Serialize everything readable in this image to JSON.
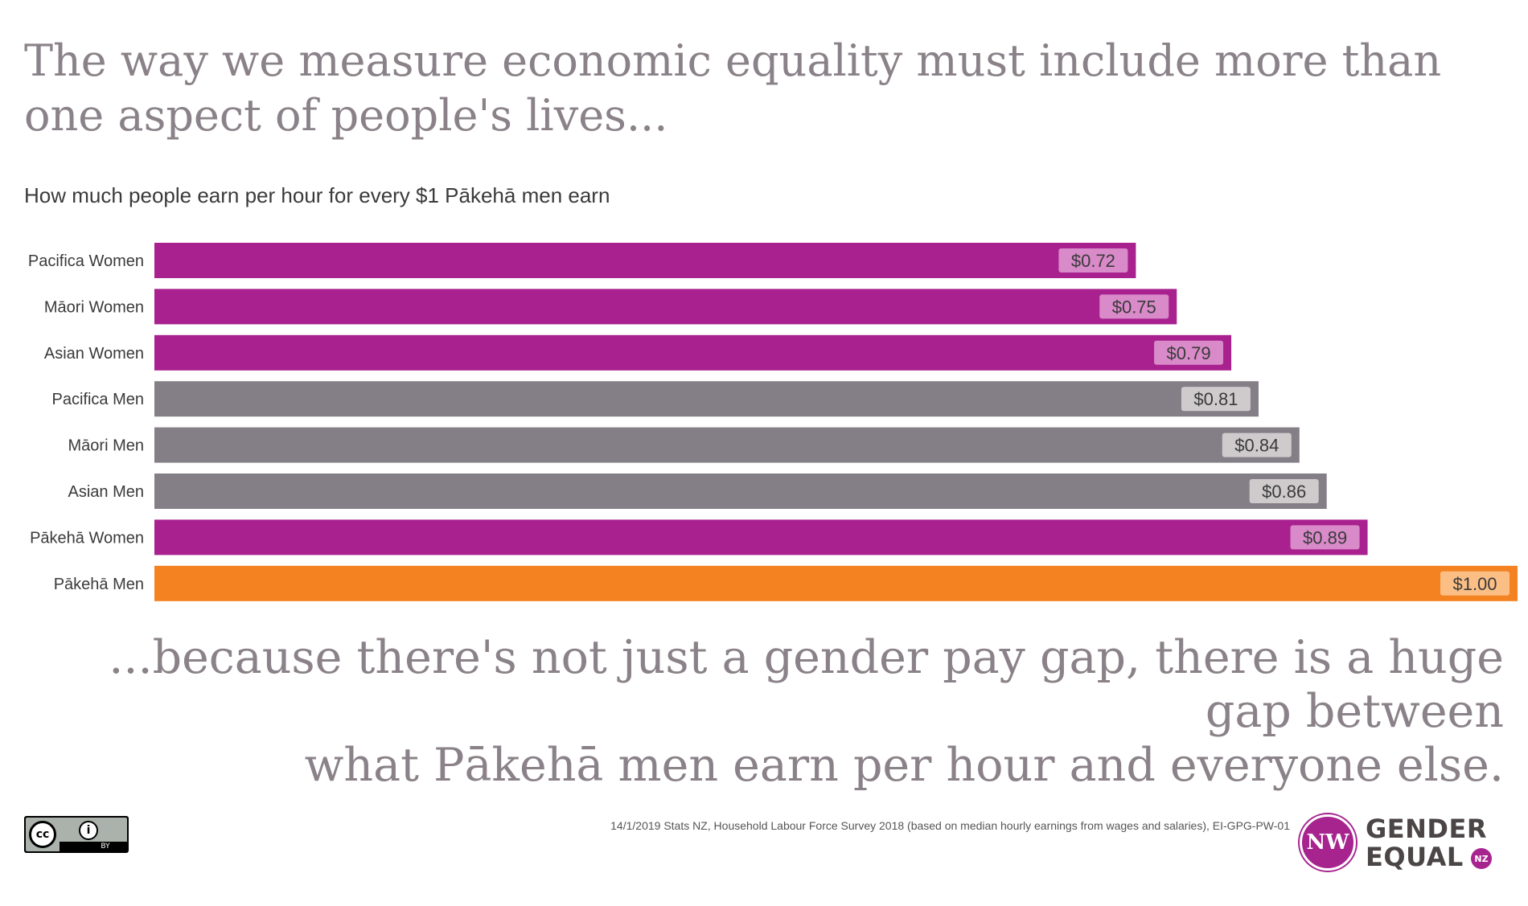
{
  "headline": "The way we measure economic equality must include more than one aspect of people's lives...",
  "tagline_line1": "...because there's not just a gender pay gap, there is a huge gap between",
  "tagline_line2": "what Pākehā men earn per hour and everyone else.",
  "source": "14/1/2019 Stats NZ, Household Labour Force Survey 2018 (based on median hourly earnings from wages and salaries), EI-GPG-PW-01",
  "license_badge": {
    "cc_text": "cc",
    "by_text": "BY",
    "icon": "creative-commons-by-icon"
  },
  "logo": {
    "monogram": "NW",
    "word1": "GENDER",
    "word2": "EQUAL",
    "nz": "NZ",
    "icon": "gender-equal-nz-logo"
  },
  "colors": {
    "women": "#a8218f",
    "men": "#847e86",
    "pakeha_men": "#f58220",
    "label_women": "#d98ac9",
    "label_men": "#cfcbcd",
    "label_pakeha_men": "#fbbf86"
  },
  "chart_data": {
    "type": "bar",
    "orientation": "horizontal",
    "title": "How much people earn per hour for every $1 Pākehā men earn",
    "categories": [
      "Pacifica Women",
      "Māori Women",
      "Asian Women",
      "Pacifica Men",
      "Māori Men",
      "Asian Men",
      "Pākehā Women",
      "Pākehā Men"
    ],
    "values": [
      0.72,
      0.75,
      0.79,
      0.81,
      0.84,
      0.86,
      0.89,
      1.0
    ],
    "value_labels": [
      "$0.72",
      "$0.75",
      "$0.79",
      "$0.81",
      "$0.84",
      "$0.86",
      "$0.89",
      "$1.00"
    ],
    "groups": [
      "women",
      "women",
      "women",
      "men",
      "men",
      "men",
      "women",
      "pakeha_men"
    ],
    "xlim": [
      0,
      1.0
    ],
    "grid": false,
    "legend": "none"
  }
}
